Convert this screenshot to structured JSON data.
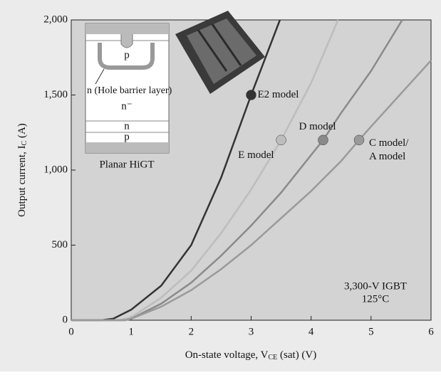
{
  "chart_data": {
    "type": "line",
    "xlabel": {
      "text": "On-state voltage, V",
      "sub": "CE",
      "after": " (sat) (V)"
    },
    "ylabel": {
      "text": "Output current, I",
      "sub": "C",
      "after": " (A)"
    },
    "xlim": [
      0,
      6
    ],
    "xticks": [
      0,
      1,
      2,
      3,
      4,
      5,
      6
    ],
    "ylim": [
      0,
      2000
    ],
    "yticks": [
      0,
      500,
      {
        "value": 1000,
        "label": "1,000"
      },
      {
        "value": 1500,
        "label": "1,500"
      },
      {
        "value": 2000,
        "label": "2,000"
      }
    ],
    "series": [
      {
        "name": "E2 model",
        "color": "#333333",
        "x": [
          0,
          0.5,
          0.7,
          1,
          1.5,
          2,
          2.5,
          3,
          3.48
        ],
        "y": [
          0,
          0,
          10,
          70,
          230,
          500,
          950,
          1500,
          2000
        ],
        "marker": {
          "x": 3,
          "y": 1500
        }
      },
      {
        "name": "E model",
        "color": "#bdbdbd",
        "x": [
          0,
          0.8,
          1,
          1.5,
          2,
          2.5,
          3,
          3.5,
          4,
          4.45
        ],
        "y": [
          0,
          0,
          20,
          150,
          330,
          580,
          870,
          1200,
          1580,
          2000
        ],
        "marker": {
          "x": 3.5,
          "y": 1200
        }
      },
      {
        "name": "D model",
        "color": "#8a8a8a",
        "x": [
          0,
          0.9,
          1,
          1.5,
          2,
          2.5,
          3,
          3.5,
          4,
          4.2,
          4.5,
          5,
          5.52
        ],
        "y": [
          0,
          0,
          10,
          110,
          250,
          430,
          630,
          850,
          1100,
          1200,
          1380,
          1660,
          2000
        ],
        "marker": {
          "x": 4.2,
          "y": 1200
        }
      },
      {
        "name": [
          "C model/",
          "A model"
        ],
        "color": "#9a9a9a",
        "x": [
          0,
          0.9,
          1,
          1.5,
          2,
          2.5,
          3,
          3.5,
          4,
          4.5,
          4.8,
          5,
          5.5,
          6
        ],
        "y": [
          0,
          0,
          10,
          90,
          200,
          340,
          500,
          680,
          860,
          1060,
          1200,
          1290,
          1510,
          1730
        ],
        "marker": {
          "x": 4.8,
          "y": 1200
        }
      }
    ],
    "annotation": [
      "3,300-V IGBT",
      "125°C"
    ],
    "inset": {
      "p_top": "p",
      "barrier": "n (Hole barrier layer)",
      "drift": "n⁻",
      "n": "n",
      "p": "p",
      "caption": "Planar HiGT"
    }
  }
}
